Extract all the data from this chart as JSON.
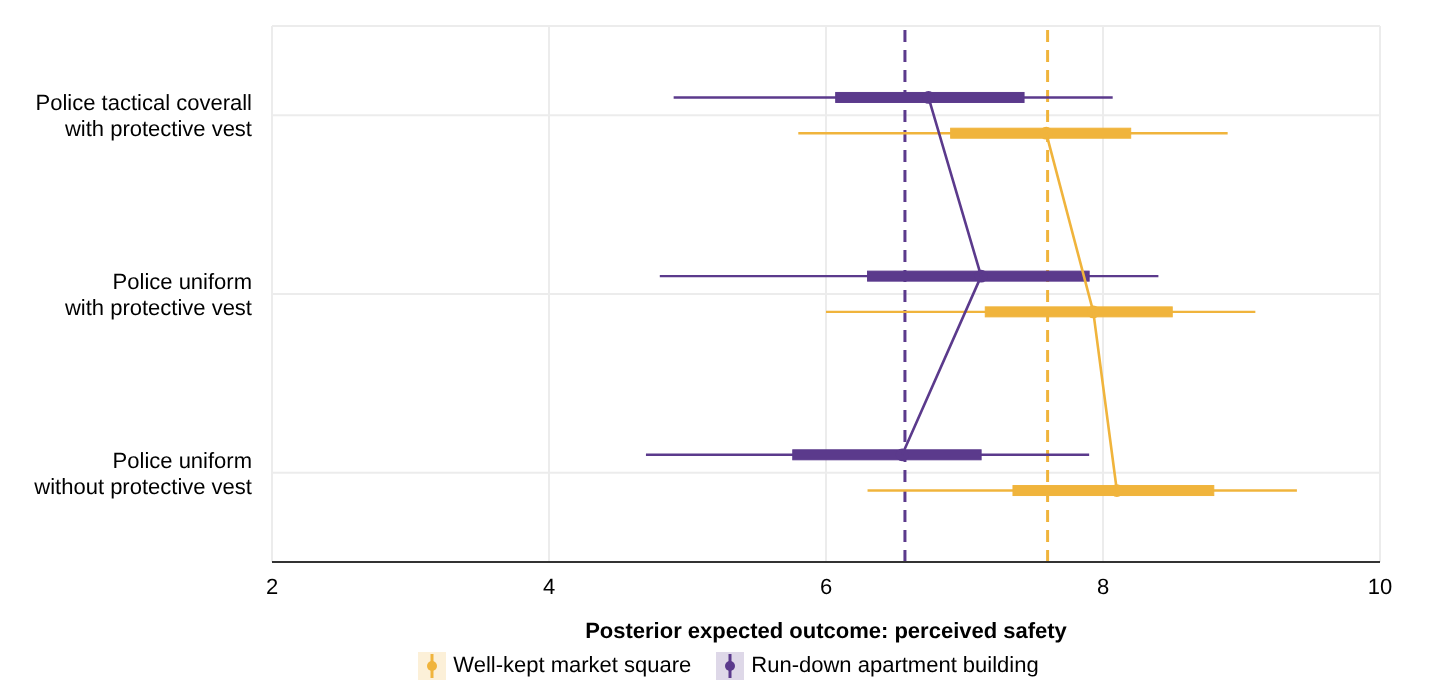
{
  "chart_data": {
    "type": "box",
    "orientation": "horizontal",
    "xlabel": "Posterior expected outcome: perceived safety",
    "categories": [
      "Police tactical coverall\nwith protective vest",
      "Police uniform\nwith protective vest",
      "Police uniform\nwithout protective vest"
    ],
    "series": [
      {
        "name": "Well-kept market square",
        "color": "#f0b43c",
        "boxes": [
          {
            "low": 5.8,
            "q1": 6.9,
            "median": 7.59,
            "q3": 8.2,
            "high": 8.9
          },
          {
            "low": 6.0,
            "q1": 7.15,
            "median": 7.93,
            "q3": 8.5,
            "high": 9.1
          },
          {
            "low": 6.3,
            "q1": 7.35,
            "median": 8.1,
            "q3": 8.8,
            "high": 9.4
          }
        ]
      },
      {
        "name": "Run-down apartment building",
        "color": "#5b3a8c",
        "boxes": [
          {
            "low": 4.9,
            "q1": 6.07,
            "median": 6.74,
            "q3": 7.43,
            "high": 8.07
          },
          {
            "low": 4.8,
            "q1": 6.3,
            "median": 7.12,
            "q3": 7.9,
            "high": 8.4
          },
          {
            "low": 4.7,
            "q1": 5.76,
            "median": 6.55,
            "q3": 7.12,
            "high": 7.9
          }
        ]
      },
      {
        "type": "line",
        "color": "#f0b43c",
        "values": [
          7.59,
          7.93,
          8.1
        ]
      },
      {
        "type": "line",
        "color": "#5b3a8c",
        "values": [
          6.74,
          7.12,
          6.55
        ]
      }
    ],
    "xlim": [
      2,
      10
    ],
    "xticks": [
      2,
      4,
      6,
      8,
      10
    ],
    "ref_lines": [
      {
        "axis": "x",
        "value": 7.6,
        "color": "#f0b43c",
        "line_style": "dashed"
      },
      {
        "axis": "x",
        "value": 6.57,
        "color": "#5b3a8c",
        "line_style": "dashed"
      }
    ],
    "grid": true,
    "legend": "bottom"
  }
}
